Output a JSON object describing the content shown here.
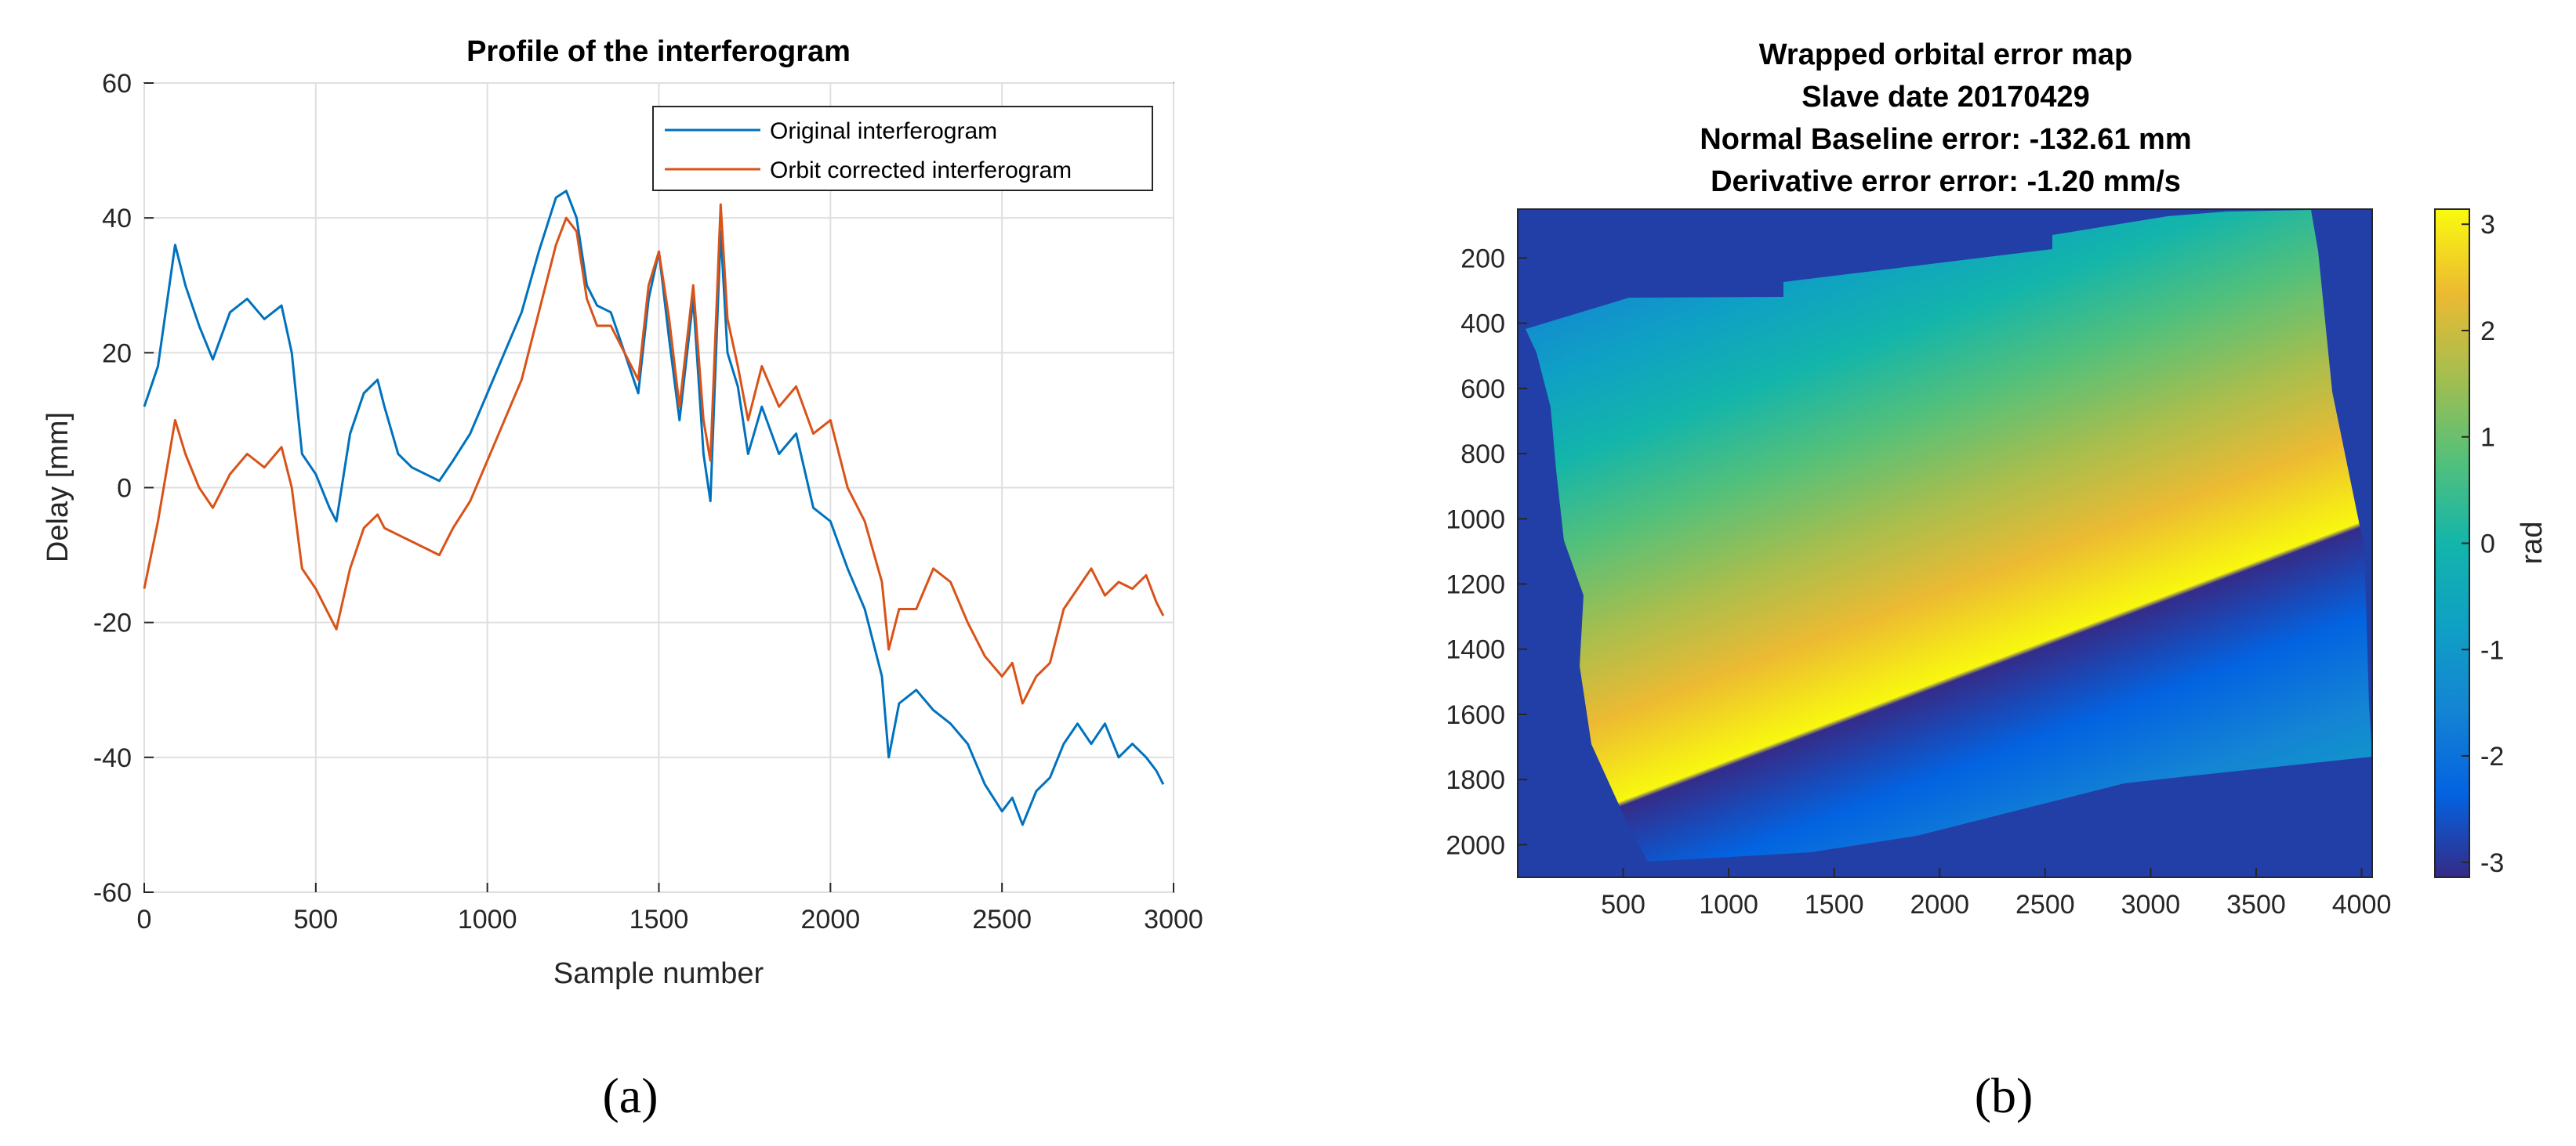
{
  "panels": [
    {
      "label": "(a)",
      "chart_data": {
        "type": "line",
        "title": "Profile of the interferogram",
        "xlabel": "Sample number",
        "ylabel": "Delay [mm]",
        "xlim": [
          0,
          3000
        ],
        "ylim": [
          -60,
          60
        ],
        "xticks": [
          0,
          500,
          1000,
          1500,
          2000,
          2500,
          3000
        ],
        "yticks": [
          -60,
          -40,
          -20,
          0,
          20,
          40,
          60
        ],
        "grid": true,
        "legend_position": "top-right",
        "series": [
          {
            "name": "Original interferogram",
            "color": "#0072BD",
            "x": [
              0,
              40,
              90,
              120,
              160,
              200,
              250,
              300,
              350,
              400,
              430,
              460,
              500,
              540,
              560,
              600,
              640,
              680,
              700,
              740,
              780,
              820,
              860,
              900,
              950,
              1000,
              1050,
              1100,
              1150,
              1200,
              1230,
              1260,
              1290,
              1320,
              1360,
              1400,
              1440,
              1470,
              1500,
              1530,
              1560,
              1600,
              1630,
              1650,
              1680,
              1700,
              1730,
              1760,
              1800,
              1850,
              1900,
              1950,
              2000,
              2050,
              2100,
              2150,
              2170,
              2200,
              2250,
              2300,
              2350,
              2400,
              2450,
              2500,
              2530,
              2560,
              2600,
              2640,
              2680,
              2720,
              2760,
              2800,
              2840,
              2880,
              2920,
              2950,
              2970
            ],
            "values": [
              12,
              18,
              36,
              30,
              24,
              19,
              26,
              28,
              25,
              27,
              20,
              5,
              2,
              -3,
              -5,
              8,
              14,
              16,
              12,
              5,
              3,
              2,
              1,
              4,
              8,
              14,
              20,
              26,
              35,
              43,
              44,
              40,
              30,
              27,
              26,
              20,
              14,
              28,
              35,
              22,
              10,
              28,
              5,
              -2,
              38,
              20,
              15,
              5,
              12,
              5,
              8,
              -3,
              -5,
              -12,
              -18,
              -28,
              -40,
              -32,
              -30,
              -33,
              -35,
              -38,
              -44,
              -48,
              -46,
              -50,
              -45,
              -43,
              -38,
              -35,
              -38,
              -35,
              -40,
              -38,
              -40,
              -42,
              -44
            ]
          },
          {
            "name": "Orbit corrected interferogram",
            "color": "#D95319",
            "x": [
              0,
              40,
              90,
              120,
              160,
              200,
              250,
              300,
              350,
              400,
              430,
              460,
              500,
              540,
              560,
              600,
              640,
              680,
              700,
              740,
              780,
              820,
              860,
              900,
              950,
              1000,
              1050,
              1100,
              1150,
              1200,
              1230,
              1260,
              1290,
              1320,
              1360,
              1400,
              1440,
              1470,
              1500,
              1530,
              1560,
              1600,
              1630,
              1650,
              1680,
              1700,
              1730,
              1760,
              1800,
              1850,
              1900,
              1950,
              2000,
              2050,
              2100,
              2150,
              2170,
              2200,
              2250,
              2300,
              2350,
              2400,
              2450,
              2500,
              2530,
              2560,
              2600,
              2640,
              2680,
              2720,
              2760,
              2800,
              2840,
              2880,
              2920,
              2950,
              2970
            ],
            "values": [
              -15,
              -5,
              10,
              5,
              0,
              -3,
              2,
              5,
              3,
              6,
              0,
              -12,
              -15,
              -19,
              -21,
              -12,
              -6,
              -4,
              -6,
              -7,
              -8,
              -9,
              -10,
              -6,
              -2,
              4,
              10,
              16,
              26,
              36,
              40,
              38,
              28,
              24,
              24,
              20,
              16,
              30,
              35,
              25,
              12,
              30,
              10,
              4,
              42,
              25,
              18,
              10,
              18,
              12,
              15,
              8,
              10,
              0,
              -5,
              -14,
              -24,
              -18,
              -18,
              -12,
              -14,
              -20,
              -25,
              -28,
              -26,
              -32,
              -28,
              -26,
              -18,
              -15,
              -12,
              -16,
              -14,
              -15,
              -13,
              -17,
              -19
            ]
          }
        ]
      }
    },
    {
      "label": "(b)",
      "chart_data": {
        "type": "heatmap",
        "title_lines": [
          "Wrapped orbital error map",
          "Slave date 20170429",
          "Normal Baseline error: -132.61 mm",
          "Derivative error error: -1.20 mm/s"
        ],
        "xlim": [
          0,
          4050
        ],
        "ylim": [
          2100,
          50
        ],
        "xticks": [
          500,
          1000,
          1500,
          2000,
          2500,
          3000,
          3500,
          4000
        ],
        "yticks": [
          200,
          400,
          600,
          800,
          1000,
          1200,
          1400,
          1600,
          1800,
          2000
        ],
        "colorbar": {
          "label": "rad",
          "range": [
            -3.14159,
            3.14159
          ],
          "ticks": [
            3,
            2,
            1,
            0,
            -1,
            -2,
            -3
          ],
          "colormap": "parula"
        },
        "wrap_period": 6.28318,
        "phase_at_origin": -2.3,
        "phase_gradient_per_pixel": [
          0.000975,
          0.00167
        ],
        "background_value": -2.85
      }
    }
  ]
}
